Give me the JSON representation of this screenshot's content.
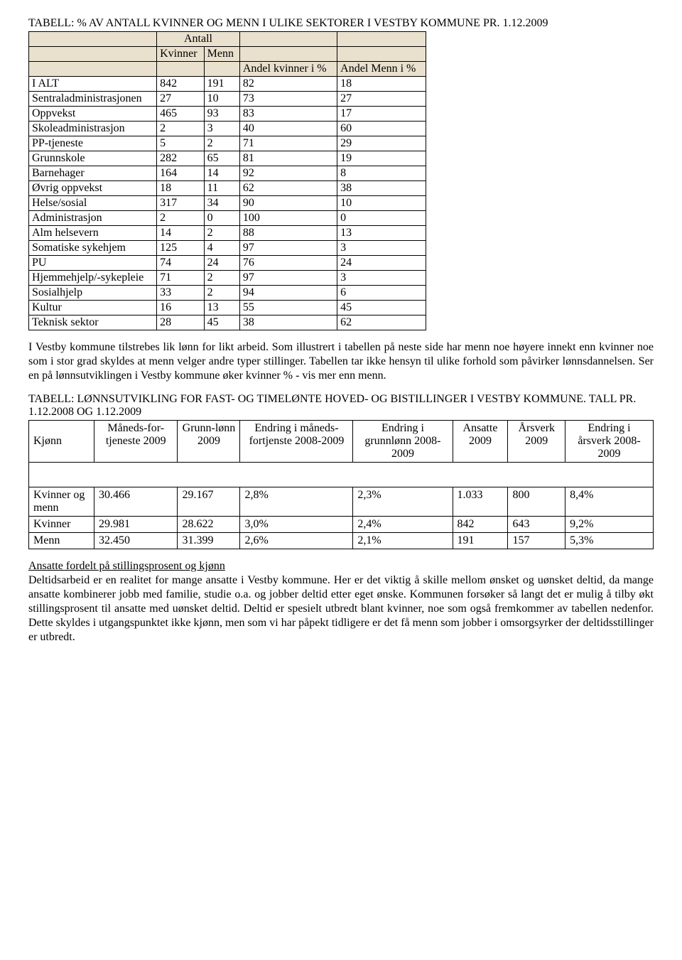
{
  "doc": {
    "title1": "TABELL: % AV ANTALL KVINNER OG MENN I ULIKE SEKTORER I VESTBY KOMMUNE PR. 1.12.2009",
    "t1": {
      "h_antall": "Antall",
      "h_kvinner": "Kvinner",
      "h_menn": "Menn",
      "h_andel_kvinner": "Andel kvinner i %",
      "h_andel_menn": "Andel Menn i %",
      "rows": [
        {
          "label": "I ALT",
          "k": "842",
          "m": "191",
          "ak": "82",
          "am": "18"
        },
        {
          "label": "Sentraladministrasjonen",
          "k": "27",
          "m": "10",
          "ak": "73",
          "am": "27"
        },
        {
          "label": "Oppvekst",
          "k": "465",
          "m": "93",
          "ak": "83",
          "am": "17"
        },
        {
          "label": "Skoleadministrasjon",
          "k": "2",
          "m": "3",
          "ak": "40",
          "am": "60"
        },
        {
          "label": "PP-tjeneste",
          "k": "5",
          "m": "2",
          "ak": "71",
          "am": "29"
        },
        {
          "label": "Grunnskole",
          "k": "282",
          "m": "65",
          "ak": "81",
          "am": "19"
        },
        {
          "label": "Barnehager",
          "k": "164",
          "m": "14",
          "ak": "92",
          "am": "8"
        },
        {
          "label": "Øvrig oppvekst",
          "k": "18",
          "m": "11",
          "ak": "62",
          "am": "38"
        },
        {
          "label": "Helse/sosial",
          "k": "317",
          "m": "34",
          "ak": "90",
          "am": "10"
        },
        {
          "label": "Administrasjon",
          "k": "2",
          "m": "0",
          "ak": "100",
          "am": "0"
        },
        {
          "label": "Alm helsevern",
          "k": "14",
          "m": "2",
          "ak": "88",
          "am": "13"
        },
        {
          "label": "Somatiske sykehjem",
          "k": "125",
          "m": "4",
          "ak": "97",
          "am": "3"
        },
        {
          "label": "PU",
          "k": "74",
          "m": "24",
          "ak": "76",
          "am": "24"
        },
        {
          "label": "Hjemmehjelp/-sykepleie",
          "k": "71",
          "m": "2",
          "ak": "97",
          "am": "3"
        },
        {
          "label": "Sosialhjelp",
          "k": "33",
          "m": "2",
          "ak": "94",
          "am": "6"
        },
        {
          "label": "Kultur",
          "k": "16",
          "m": "13",
          "ak": "55",
          "am": "45"
        },
        {
          "label": "Teknisk sektor",
          "k": "28",
          "m": "45",
          "ak": "38",
          "am": "62"
        }
      ]
    },
    "para1": "I Vestby kommune tilstrebes lik lønn for likt arbeid. Som illustrert i tabellen på neste side har menn noe høyere innekt enn kvinner noe som i stor grad skyldes at menn velger andre typer stillinger. Tabellen tar ikke hensyn til ulike forhold som påvirker lønnsdannelsen. Ser en på lønnsutviklingen i Vestby kommune øker kvinner % - vis mer enn menn.",
    "title2": "TABELL: LØNNSUTVIKLING FOR FAST- OG TIMELØNTE HOVED- OG BISTILLINGER I VESTBY KOMMUNE. TALL PR. 1.12.2008 OG 1.12.2009",
    "t2": {
      "headers": {
        "kjonn": "Kjønn",
        "mft": "Måneds-for-tjeneste 2009",
        "grunn": "Grunn-lønn 2009",
        "emft": "Endring i måneds-fortjenste 2008-2009",
        "egrunn": "Endring i grunnlønn 2008-2009",
        "ansatte": "Ansatte 2009",
        "arsverk": "Årsverk 2009",
        "earsverk": "Endring i årsverk 2008-2009"
      },
      "rows": [
        {
          "label": "Kvinner og menn",
          "mft": "30.466",
          "grunn": "29.167",
          "emft": "2,8%",
          "egrunn": "2,3%",
          "ansatte": "1.033",
          "arsverk": "800",
          "earsverk": "8,4%"
        },
        {
          "label": "Kvinner",
          "mft": "29.981",
          "grunn": "28.622",
          "emft": "3,0%",
          "egrunn": "2,4%",
          "ansatte": "842",
          "arsverk": "643",
          "earsverk": "9,2%"
        },
        {
          "label": "Menn",
          "mft": "32.450",
          "grunn": "31.399",
          "emft": "2,6%",
          "egrunn": "2,1%",
          "ansatte": "191",
          "arsverk": "157",
          "earsverk": "5,3%"
        }
      ]
    },
    "heading2": "Ansatte fordelt på stillingsprosent og kjønn",
    "para2": "Deltidsarbeid er en realitet for mange ansatte i Vestby kommune. Her er det viktig å skille mellom ønsket og uønsket deltid, da mange ansatte kombinerer jobb med familie, studie o.a. og jobber deltid etter eget ønske. Kommunen forsøker så langt det er mulig å tilby økt stillingsprosent til ansatte med uønsket deltid. Deltid er spesielt utbredt blant kvinner, noe som også fremkommer av tabellen nedenfor. Dette skyldes i utgangspunktet ikke kjønn, men som vi har påpekt tidligere er det få menn som jobber i omsorgsyrker der deltidsstillinger er utbredt."
  }
}
